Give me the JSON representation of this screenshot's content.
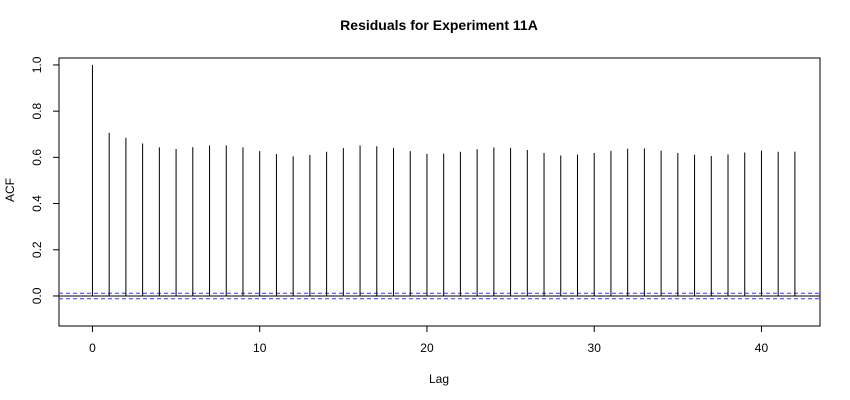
{
  "chart_data": {
    "type": "bar",
    "title": "Residuals for Experiment 11A",
    "xlabel": "Lag",
    "ylabel": "ACF",
    "xlim": [
      -2,
      43.5
    ],
    "ylim": [
      -0.13,
      1.03
    ],
    "x_ticks": [
      0,
      10,
      20,
      30,
      40
    ],
    "x_tick_labels": [
      "0",
      "10",
      "20",
      "30",
      "40"
    ],
    "y_ticks": [
      0.0,
      0.2,
      0.4,
      0.6,
      0.8,
      1.0
    ],
    "y_tick_labels": [
      "0.0",
      "0.2",
      "0.4",
      "0.6",
      "0.8",
      "1.0"
    ],
    "lags": [
      0,
      1,
      2,
      3,
      4,
      5,
      6,
      7,
      8,
      9,
      10,
      11,
      12,
      13,
      14,
      15,
      16,
      17,
      18,
      19,
      20,
      21,
      22,
      23,
      24,
      25,
      26,
      27,
      28,
      29,
      30,
      31,
      32,
      33,
      34,
      35,
      36,
      37,
      38,
      39,
      40,
      41,
      42
    ],
    "values": [
      1.0,
      0.706,
      0.685,
      0.66,
      0.643,
      0.636,
      0.644,
      0.652,
      0.652,
      0.643,
      0.627,
      0.614,
      0.605,
      0.61,
      0.624,
      0.64,
      0.651,
      0.648,
      0.641,
      0.627,
      0.615,
      0.616,
      0.624,
      0.635,
      0.643,
      0.641,
      0.632,
      0.619,
      0.608,
      0.612,
      0.619,
      0.628,
      0.637,
      0.639,
      0.629,
      0.619,
      0.611,
      0.606,
      0.613,
      0.621,
      0.629,
      0.624,
      0.625
    ],
    "confidence_bound": 0.0118,
    "zero_line": 0,
    "grid": false,
    "colors": {
      "bars": "#000000",
      "zero_line": "#000000",
      "ci_lines": "#3333ff"
    }
  }
}
